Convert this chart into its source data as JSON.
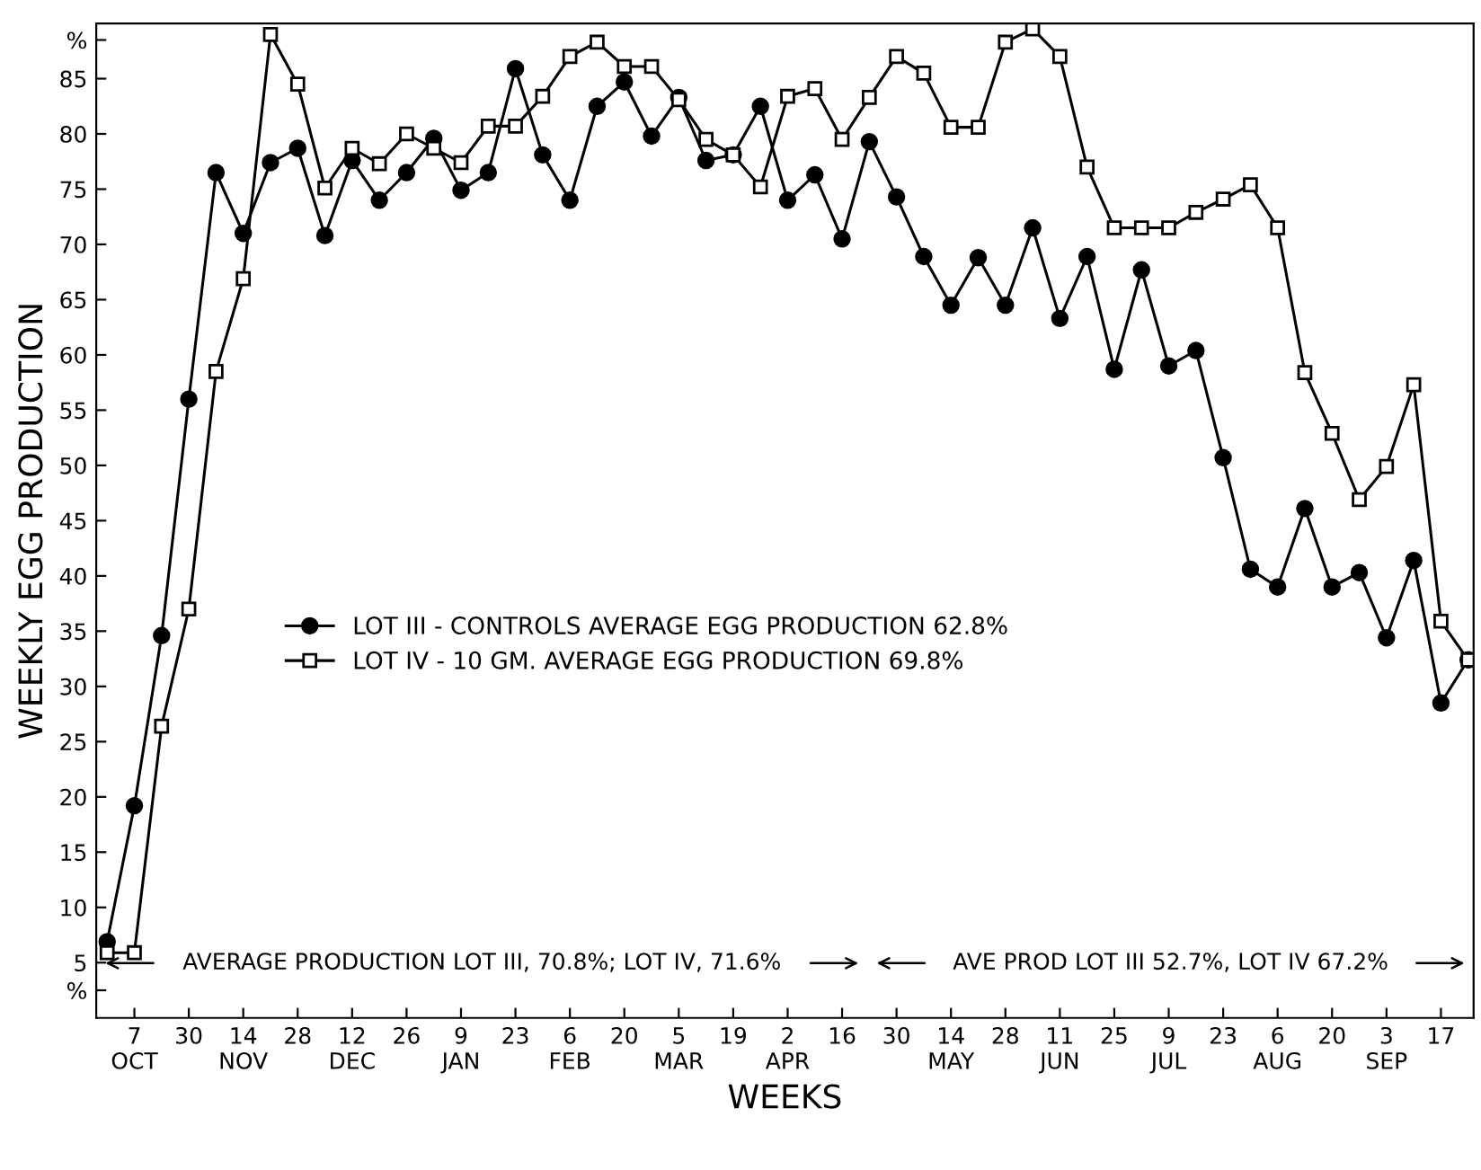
{
  "chart_data": {
    "type": "line",
    "xlabel": "WEEKS",
    "ylabel": "WEEKLY EGG PRODUCTION",
    "categories": [
      null,
      "7\nOCT",
      null,
      "30",
      null,
      "14\nNOV",
      null,
      "28",
      null,
      "12\nDEC",
      null,
      "26",
      null,
      "9\nJAN",
      null,
      "23",
      null,
      "6\nFEB",
      null,
      "20",
      null,
      "5\nMAR",
      null,
      "19",
      null,
      "2\nAPR",
      null,
      "16",
      null,
      "30",
      null,
      "14\nMAY",
      null,
      "28",
      null,
      "11\nJUN",
      null,
      "25",
      null,
      "9\nJUL",
      null,
      "23",
      null,
      "6\nAUG",
      null,
      "20",
      null,
      "3\nSEP",
      null,
      "17",
      null
    ],
    "series": [
      {
        "name": "LOT III - CONTROLS AVERAGE EGG PRODUCTION 62.8%",
        "color": "#000000",
        "marker": "circle",
        "values": [
          6.9,
          19.2,
          34.6,
          56.0,
          76.5,
          71.0,
          77.4,
          78.7,
          70.8,
          77.6,
          74.0,
          76.5,
          79.6,
          74.9,
          76.5,
          85.9,
          78.1,
          74.0,
          82.5,
          84.7,
          79.8,
          83.3,
          77.6,
          78.1,
          82.5,
          74.0,
          76.3,
          70.5,
          79.3,
          74.3,
          68.9,
          64.5,
          68.8,
          64.5,
          71.5,
          63.3,
          68.9,
          58.7,
          67.7,
          59.0,
          60.4,
          50.7,
          40.6,
          39.0,
          46.1,
          39.0,
          40.3,
          34.4,
          41.4,
          28.5,
          32.4
        ]
      },
      {
        "name": "LOT IV - 10 GM. AVERAGE EGG PRODUCTION 69.8%",
        "color": "#000000",
        "marker": "square",
        "values": [
          5.9,
          5.9,
          26.4,
          37.0,
          58.5,
          66.9,
          89.0,
          84.5,
          75.1,
          78.7,
          77.3,
          80.0,
          78.7,
          77.4,
          80.7,
          80.7,
          83.4,
          87.0,
          88.3,
          86.1,
          86.1,
          83.1,
          79.5,
          78.1,
          75.2,
          83.4,
          84.1,
          79.5,
          83.3,
          87.0,
          85.5,
          80.6,
          80.6,
          88.3,
          89.5,
          87.0,
          77.0,
          71.5,
          71.5,
          71.5,
          72.9,
          74.1,
          75.4,
          71.5,
          58.4,
          52.9,
          46.9,
          49.9,
          57.3,
          35.9,
          32.4
        ]
      }
    ],
    "ylim": [
      0,
      90
    ],
    "yticks": [
      {
        "value": 2.5,
        "label": "%"
      },
      5,
      10,
      15,
      20,
      25,
      30,
      35,
      40,
      45,
      50,
      55,
      60,
      65,
      70,
      75,
      80,
      85,
      {
        "value": 88.5,
        "label": "%"
      }
    ],
    "grid": false,
    "legend": "center",
    "line_style": "solid",
    "annotations": [
      "AVERAGE PRODUCTION LOT III, 70.8%; LOT IV, 71.6%",
      "AVE PROD LOT III 52.7%, LOT IV 67.2%"
    ]
  }
}
